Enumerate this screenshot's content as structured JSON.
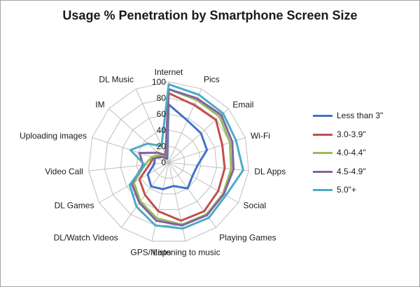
{
  "chart_data": {
    "type": "radar",
    "title": "Usage % Penetration by Smartphone Screen Size",
    "categories": [
      "Internet",
      "Pics",
      "Email",
      "Wi-Fi",
      "DL Apps",
      "Social",
      "Playing Games",
      "Listening to music",
      "GPS/Maps",
      "DL/Watch Videos",
      "DL Games",
      "Video Call",
      "Uploading images",
      "IM",
      "DL Music"
    ],
    "r_ticks": [
      "0",
      "20",
      "40",
      "60",
      "80",
      "100"
    ],
    "rlim": [
      0,
      100
    ],
    "legend_position": "right",
    "series": [
      {
        "name": "Less than 3\"",
        "color": "#4472c4",
        "values": [
          72,
          57,
          54,
          50,
          36,
          34,
          40,
          30,
          34,
          37,
          30,
          18,
          18,
          10,
          5
        ]
      },
      {
        "name": "3.0-3.9\"",
        "color": "#c0504d",
        "values": [
          86,
          78,
          79,
          70,
          70,
          71,
          75,
          74,
          62,
          50,
          42,
          24,
          20,
          12,
          8
        ]
      },
      {
        "name": "4.0-4.4\"",
        "color": "#9bbb59",
        "values": [
          91,
          85,
          85,
          80,
          78,
          78,
          80,
          79,
          71,
          60,
          50,
          30,
          22,
          14,
          9
        ]
      },
      {
        "name": "4.5-4.9\"",
        "color": "#8064a2",
        "values": [
          91,
          87,
          88,
          83,
          81,
          79,
          81,
          80,
          74,
          62,
          53,
          32,
          38,
          18,
          10
        ]
      },
      {
        "name": "5.0\"+",
        "color": "#4bacc6",
        "values": [
          97,
          92,
          91,
          88,
          93,
          82,
          85,
          84,
          80,
          68,
          56,
          30,
          50,
          35,
          22
        ]
      }
    ]
  }
}
